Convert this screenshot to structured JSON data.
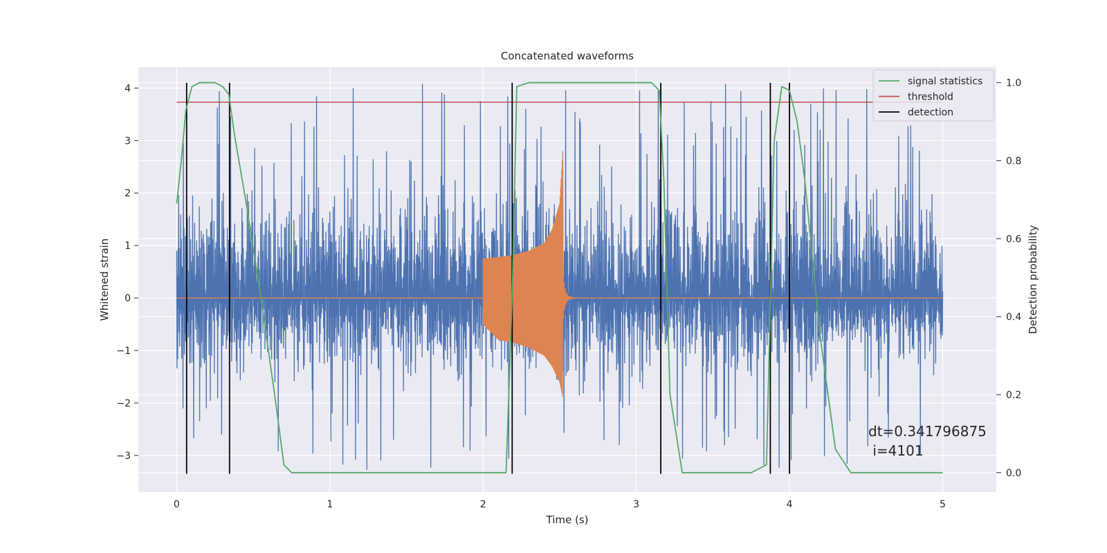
{
  "chart_data": {
    "type": "line",
    "title": "Concatenated waveforms",
    "xlabel": "Time (s)",
    "ylabel": "Whitened strain",
    "y2label": "Detection probability",
    "xlim": [
      -0.25,
      5.35
    ],
    "ylim": [
      -3.7,
      4.4
    ],
    "y2lim": [
      -0.05,
      1.04
    ],
    "xticks": [
      "0",
      "1",
      "2",
      "3",
      "4",
      "5"
    ],
    "yticks": [
      "−3",
      "−2",
      "−1",
      "0",
      "1",
      "2",
      "3",
      "4"
    ],
    "y2ticks": [
      "0.0",
      "0.2",
      "0.4",
      "0.6",
      "0.8",
      "1.0"
    ],
    "grid": true,
    "legend_position": "top-right",
    "colors": {
      "background": "#eaeaf2",
      "grid": "#ffffff",
      "strain": "#4c72b0",
      "injection": "#dd8452",
      "signal_statistics": "#55a868",
      "threshold": "#c44e52",
      "detection": "#000000"
    },
    "series": [
      {
        "name": "",
        "color": "#4c72b0",
        "kind": "noise",
        "x_range": [
          0,
          5
        ],
        "typical_range": [
          -1.7,
          2.5
        ],
        "max": 4.1,
        "min": -3.3
      },
      {
        "name": "",
        "color": "#dd8452",
        "kind": "chirp",
        "flat_value": 0,
        "x": [
          2.0,
          2.1,
          2.2,
          2.3,
          2.4,
          2.45,
          2.5,
          2.52
        ],
        "envelope_upper": [
          0.75,
          0.78,
          0.82,
          0.9,
          1.05,
          1.3,
          1.8,
          2.8
        ],
        "envelope_lower": [
          -0.5,
          -0.8,
          -0.85,
          -0.95,
          -1.1,
          -1.3,
          -1.6,
          -1.9
        ]
      },
      {
        "name": "signal statistics",
        "color": "#55a868",
        "axis": "right",
        "x": [
          0.0,
          0.03,
          0.06,
          0.1,
          0.15,
          0.25,
          0.3,
          0.34,
          0.38,
          0.45,
          0.55,
          0.65,
          0.7,
          0.75,
          2.15,
          2.19,
          2.22,
          2.3,
          3.1,
          3.15,
          3.18,
          3.22,
          3.3,
          3.75,
          3.85,
          3.9,
          3.95,
          4.0,
          4.05,
          4.1,
          4.2,
          4.3,
          4.4,
          5.0
        ],
        "y": [
          0.69,
          0.8,
          0.93,
          0.99,
          1.0,
          1.0,
          0.99,
          0.97,
          0.86,
          0.7,
          0.45,
          0.17,
          0.02,
          0.0,
          0.0,
          0.45,
          0.99,
          1.0,
          1.0,
          0.98,
          0.75,
          0.2,
          0.0,
          0.0,
          0.02,
          0.85,
          0.99,
          0.98,
          0.9,
          0.75,
          0.35,
          0.06,
          0.0,
          0.0
        ]
      },
      {
        "name": "threshold",
        "color": "#c44e52",
        "axis": "right",
        "x": [
          0,
          5
        ],
        "y": [
          0.95,
          0.95
        ]
      },
      {
        "name": "detection",
        "color": "#000000",
        "kind": "vlines",
        "x": [
          0.065,
          0.345,
          2.19,
          3.16,
          3.875,
          4.0
        ],
        "y_range": [
          -3.35,
          4.1
        ]
      }
    ],
    "annotation": {
      "line1": "dt=0.341796875",
      "line2": " i=4101"
    }
  }
}
